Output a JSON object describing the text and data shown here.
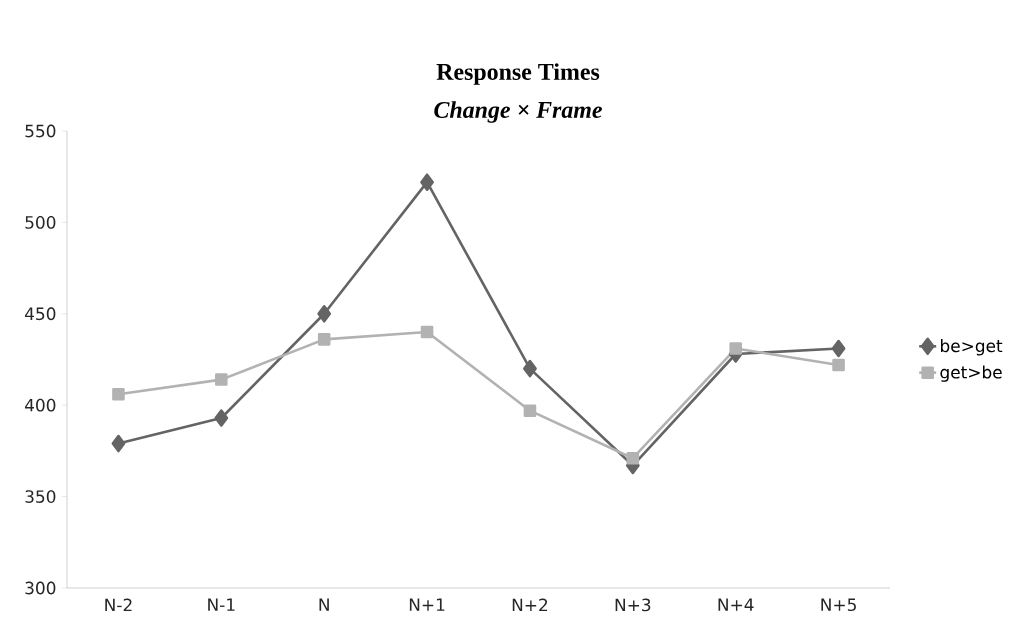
{
  "chart_data": {
    "type": "line",
    "title": "Response Times",
    "subtitle": "Change × Frame",
    "categories": [
      "N-2",
      "N-1",
      "N",
      "N+1",
      "N+2",
      "N+3",
      "N+4",
      "N+5"
    ],
    "series": [
      {
        "name": "be>get",
        "color": "#646464",
        "marker": "diamond",
        "values": [
          379,
          393,
          450,
          522,
          420,
          367,
          428,
          431
        ]
      },
      {
        "name": "get>be",
        "color": "#b2b2b2",
        "marker": "square",
        "values": [
          406,
          414,
          436,
          440,
          397,
          371,
          431,
          422
        ]
      }
    ],
    "ylim": [
      300,
      550
    ],
    "yticks": [
      300,
      350,
      400,
      450,
      500,
      550
    ],
    "grid": false,
    "legend": "right",
    "line_style": "solid"
  }
}
